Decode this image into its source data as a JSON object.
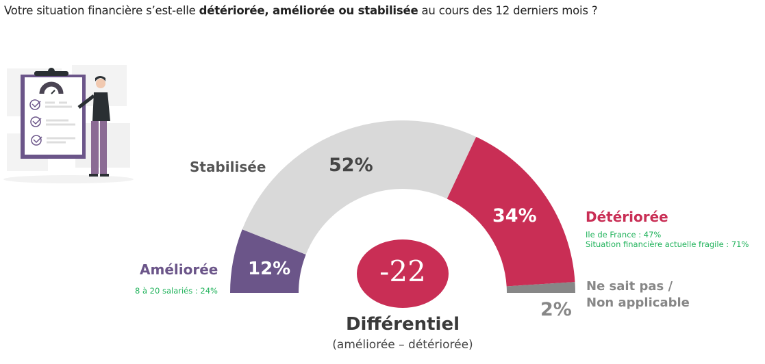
{
  "title": {
    "prefix": "Votre situation financière s’est-elle ",
    "bold": "détériorée, améliorée ou stabilisée",
    "suffix": " au cours des 12 derniers mois ?"
  },
  "chart_data": {
    "type": "pie",
    "variant": "half-donut",
    "series": [
      {
        "name": "Améliorée",
        "value": 12,
        "label": "12%",
        "color": "#6b5589",
        "note": [
          "8 à 20 salariés : 24%"
        ]
      },
      {
        "name": "Stabilisée",
        "value": 52,
        "label": "52%",
        "color": "#d9d9d9",
        "note": []
      },
      {
        "name": "Détériorée",
        "value": 34,
        "label": "34%",
        "color": "#c92e55",
        "note": [
          "Ile de France : 47%",
          "Situation financière actuelle fragile : 71%"
        ]
      },
      {
        "name": "Ne sait pas / Non applicable",
        "value": 2,
        "label": "2%",
        "color": "#878787",
        "note": []
      }
    ],
    "nsp_lines": [
      "Ne sait pas /",
      "Non applicable"
    ],
    "differential": {
      "value": "-22",
      "label": "Différentiel",
      "sublabel": "(améliorée – détériorée)",
      "color": "#c92e55"
    },
    "note_color": "#1fb25a"
  },
  "illustration": {
    "icon": "clipboard-checklist-person-icon"
  }
}
